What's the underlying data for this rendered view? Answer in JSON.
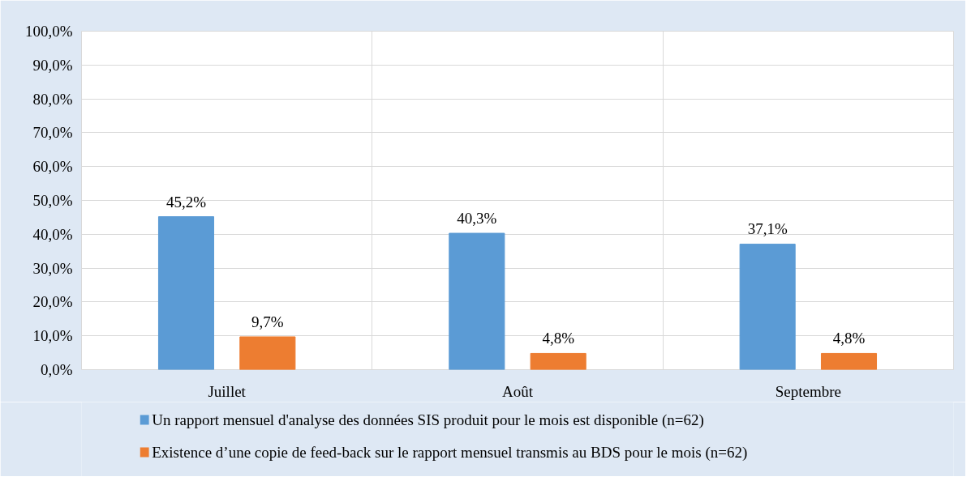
{
  "chart_data": {
    "type": "bar",
    "categories": [
      "Juillet",
      "Août",
      "Septembre"
    ],
    "series": [
      {
        "name": "Un rapport mensuel d'analyse des données SIS produit pour le mois est disponible (n=62)",
        "color": "#5b9bd5",
        "values": [
          45.2,
          40.3,
          37.1
        ],
        "value_labels": [
          "45,2%",
          "40,3%",
          "37,1%"
        ]
      },
      {
        "name": "Existence d’une copie de  feed-back sur le rapport mensuel transmis au BDS pour le mois (n=62)",
        "color": "#ed7d31",
        "values": [
          9.7,
          4.8,
          4.8
        ],
        "value_labels": [
          "9,7%",
          "4,8%",
          "4,8%"
        ]
      }
    ],
    "ylim": [
      0,
      100
    ],
    "yticks": [
      {
        "value": 0,
        "label": "0,0%"
      },
      {
        "value": 10,
        "label": "10,0%"
      },
      {
        "value": 20,
        "label": "20,0%"
      },
      {
        "value": 30,
        "label": "30,0%"
      },
      {
        "value": 40,
        "label": "40,0%"
      },
      {
        "value": 50,
        "label": "50,0%"
      },
      {
        "value": 60,
        "label": "60,0%"
      },
      {
        "value": 70,
        "label": "70,0%"
      },
      {
        "value": 80,
        "label": "80,0%"
      },
      {
        "value": 90,
        "label": "90,0%"
      },
      {
        "value": 100,
        "label": "100,0%"
      }
    ],
    "grid": true,
    "legend": "bottom"
  }
}
